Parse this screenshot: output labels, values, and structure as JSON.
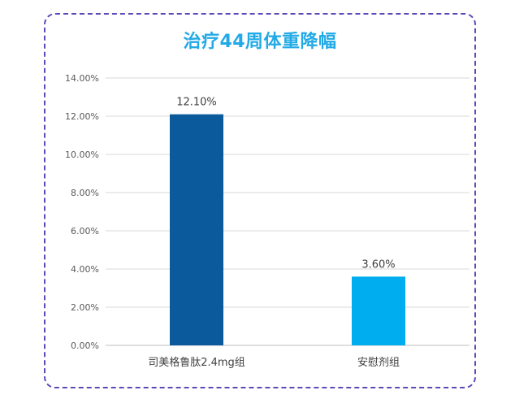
{
  "chart_data": {
    "type": "bar",
    "title": "治疗44周体重降幅",
    "categories": [
      "司美格鲁肽2.4mg组",
      "安慰剂组"
    ],
    "values": [
      12.1,
      3.6
    ],
    "data_labels": [
      "12.10%",
      "3.60%"
    ],
    "colors": [
      "#0a5a9c",
      "#00aeef"
    ],
    "ylim": [
      0,
      14
    ],
    "yticks": [
      0,
      2,
      4,
      6,
      8,
      10,
      12,
      14
    ],
    "ytick_labels": [
      "0.00%",
      "2.00%",
      "4.00%",
      "6.00%",
      "8.00%",
      "10.00%",
      "12.00%",
      "14.00%"
    ],
    "grid": true,
    "legend": "none"
  }
}
